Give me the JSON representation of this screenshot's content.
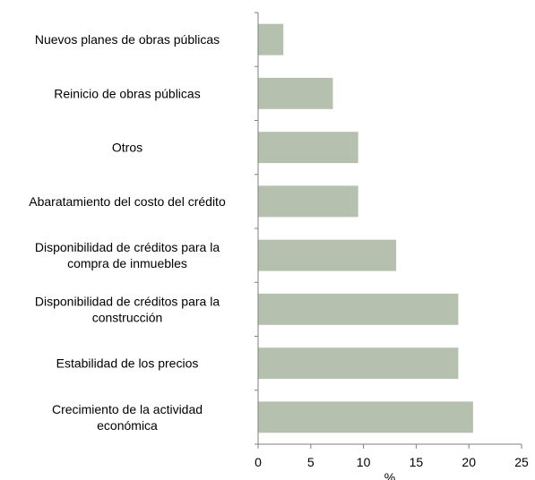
{
  "chart_data": {
    "type": "bar",
    "orientation": "horizontal",
    "categories": [
      [
        "Nuevos planes de obras públicas"
      ],
      [
        "Reinicio de obras públicas"
      ],
      [
        "Otros"
      ],
      [
        "Abaratamiento del costo del crédito"
      ],
      [
        "Disponibilidad de créditos para la",
        "compra de inmuebles"
      ],
      [
        "Disponibilidad de créditos para la",
        "construcción"
      ],
      [
        "Estabilidad de los precios"
      ],
      [
        "Crecimiento de la actividad",
        "económica"
      ]
    ],
    "values": [
      2.4,
      7.1,
      9.5,
      9.5,
      13.1,
      19.0,
      19.0,
      20.4
    ],
    "xlabel": "%",
    "xlim": [
      0,
      25
    ],
    "xticks": [
      0,
      5,
      10,
      15,
      20,
      25
    ],
    "grid": false,
    "colors": {
      "bar": "#b5c1ae",
      "axis": "#7f7f7f",
      "text": "#000000"
    }
  }
}
